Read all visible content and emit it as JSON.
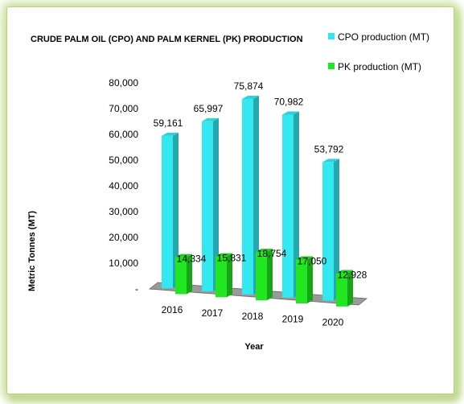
{
  "colors": {
    "cpo": "#33e8f0",
    "pk": "#22e622",
    "floor": "#9a9a9a",
    "frame": "#c9e09a"
  },
  "chart_data": {
    "type": "bar",
    "title": "CRUDE PALM OIL (CPO) AND PALM KERNEL (PK) PRODUCTION",
    "xlabel": "Year",
    "ylabel": "Metric Tonnes (MT)",
    "categories": [
      "2016",
      "2017",
      "2018",
      "2019",
      "2020"
    ],
    "series": [
      {
        "name": "CPO production (MT)",
        "values": [
          59161,
          65997,
          75874,
          70982,
          53792
        ],
        "labels": [
          "59,161",
          "65,997",
          "75,874",
          "70,982",
          "53,792"
        ]
      },
      {
        "name": "PK production (MT)",
        "values": [
          14334,
          15831,
          18754,
          17050,
          12928
        ],
        "labels": [
          "14,334",
          "15,831",
          "18,754",
          "17,050",
          "12,928"
        ]
      }
    ],
    "ylim": [
      0,
      80000
    ],
    "yticks": [
      "-",
      "10,000",
      "20,000",
      "30,000",
      "40,000",
      "50,000",
      "60,000",
      "70,000",
      "80,000"
    ],
    "legend": "top-right",
    "grid": false
  }
}
